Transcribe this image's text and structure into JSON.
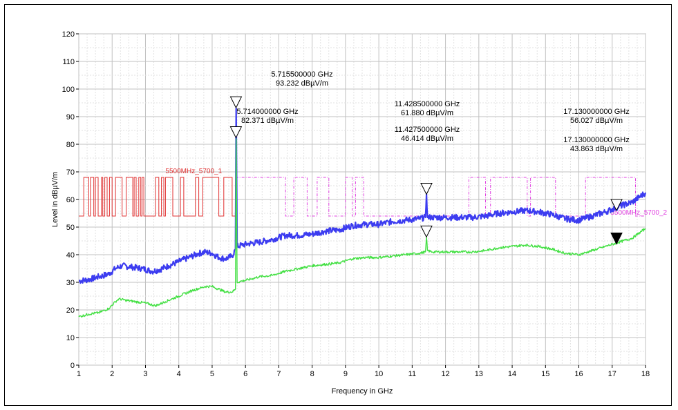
{
  "chart_data": {
    "type": "line",
    "xlabel": "Frequency in GHz",
    "ylabel": "Level in dBµV/m",
    "xlim": [
      1,
      18
    ],
    "ylim": [
      0,
      120
    ],
    "x_ticks": [
      "1",
      "2",
      "3",
      "4",
      "5",
      "6",
      "7",
      "8",
      "9",
      "10",
      "11",
      "12",
      "13",
      "14",
      "15",
      "16",
      "17",
      "18"
    ],
    "y_ticks": [
      "0",
      "10",
      "20",
      "30",
      "40",
      "50",
      "60",
      "70",
      "80",
      "90",
      "100",
      "110",
      "120"
    ],
    "grid": true,
    "colors": {
      "peak": "#3c3cf0",
      "average": "#44e044",
      "limit_1": "#e03030",
      "limit_2": "#e040e0",
      "marker": "#000000"
    },
    "series": [
      {
        "color": "#3c3cf0",
        "x": [
          1,
          1.3,
          1.6,
          1.9,
          2.1,
          2.3,
          2.6,
          2.9,
          3.2,
          3.4,
          3.7,
          4.0,
          4.3,
          4.6,
          4.8,
          5.0,
          5.2,
          5.4,
          5.6,
          5.7,
          5.72,
          5.75,
          5.9,
          6.1,
          6.4,
          6.8,
          7.2,
          7.6,
          8.0,
          8.4,
          8.8,
          9.2,
          9.6,
          10.0,
          10.4,
          10.8,
          11.2,
          11.4,
          11.43,
          11.46,
          11.6,
          12.0,
          12.4,
          12.8,
          13.2,
          13.6,
          14.0,
          14.4,
          14.8,
          15.2,
          15.6,
          16.0,
          16.4,
          16.8,
          17.2,
          17.6,
          18.0
        ],
        "y": [
          30.5,
          31,
          32,
          33,
          35,
          36,
          35.5,
          35,
          34,
          34.5,
          36,
          37.5,
          39,
          40.5,
          41,
          40.5,
          39,
          38.5,
          39.5,
          42,
          93,
          43,
          43.5,
          44,
          44.5,
          45.5,
          47,
          47,
          47.5,
          48.5,
          49,
          50.5,
          51,
          51,
          52,
          52.5,
          53,
          53.5,
          62,
          53.5,
          53.5,
          53.5,
          53.5,
          53.5,
          54,
          55,
          55.5,
          56,
          55.5,
          54.5,
          53,
          52.5,
          54,
          55.5,
          57.5,
          59,
          62.5
        ]
      },
      {
        "color": "#44e044",
        "x": [
          1,
          1.3,
          1.6,
          1.9,
          2.1,
          2.2,
          2.4,
          2.7,
          3.0,
          3.3,
          3.6,
          4.0,
          4.4,
          4.8,
          5.0,
          5.2,
          5.4,
          5.6,
          5.7,
          5.72,
          5.75,
          5.9,
          6.1,
          6.4,
          6.8,
          7.2,
          7.6,
          8.0,
          8.4,
          8.8,
          9.2,
          9.6,
          10.0,
          10.4,
          10.8,
          11.2,
          11.4,
          11.43,
          11.46,
          11.6,
          12.0,
          12.4,
          12.8,
          13.2,
          13.6,
          14.0,
          14.4,
          14.8,
          15.2,
          15.6,
          16.0,
          16.4,
          16.8,
          17.2,
          17.6,
          18.0
        ],
        "y": [
          17.5,
          18.5,
          19,
          20.5,
          23,
          24,
          23.5,
          23,
          22.5,
          21.5,
          23,
          25,
          27,
          28.5,
          28.5,
          27.5,
          26.5,
          26.5,
          27.5,
          82,
          30,
          30.5,
          31,
          32,
          32.5,
          34,
          35,
          36,
          36.5,
          37,
          38.5,
          39,
          39,
          39.5,
          40,
          40.5,
          41,
          46.4,
          41.5,
          41,
          41,
          41,
          41,
          41.5,
          42.5,
          43,
          43.5,
          43,
          42,
          40.5,
          40,
          41.5,
          43,
          44.5,
          46,
          49.5
        ]
      }
    ],
    "limit_lines": [
      {
        "name": "5500MHz_5700_1",
        "color": "#e03030",
        "x": [
          1,
          1.15,
          1.15,
          1.3,
          1.3,
          1.35,
          1.35,
          1.45,
          1.45,
          1.5,
          1.5,
          1.58,
          1.58,
          1.68,
          1.68,
          1.72,
          1.72,
          1.78,
          1.78,
          1.85,
          1.85,
          1.92,
          1.92,
          2.0,
          2.0,
          2.1,
          2.1,
          2.3,
          2.3,
          2.42,
          2.42,
          2.62,
          2.62,
          2.66,
          2.66,
          2.72,
          2.72,
          2.8,
          2.8,
          2.86,
          2.86,
          2.9,
          2.9,
          2.95,
          2.95,
          3.3,
          3.3,
          3.4,
          3.4,
          3.48,
          3.48,
          3.55,
          3.55,
          3.6,
          3.6,
          3.82,
          3.82,
          4.05,
          4.05,
          4.15,
          4.15,
          4.5,
          4.5,
          4.6,
          4.6,
          4.72,
          4.72,
          5.2,
          5.2,
          5.35,
          5.35,
          5.6,
          5.6,
          5.7
        ],
        "y": [
          54,
          54,
          68,
          68,
          54,
          54,
          68,
          68,
          54,
          54,
          68,
          68,
          54,
          54,
          68,
          68,
          54,
          54,
          68,
          68,
          54,
          54,
          68,
          68,
          54,
          54,
          68,
          68,
          54,
          54,
          68,
          68,
          54,
          54,
          68,
          68,
          54,
          54,
          68,
          68,
          54,
          54,
          68,
          68,
          54,
          54,
          68,
          68,
          54,
          54,
          68,
          68,
          54,
          54,
          68,
          68,
          54,
          54,
          68,
          68,
          54,
          54,
          68,
          68,
          54,
          54,
          68,
          68,
          54,
          54,
          68,
          68,
          54,
          54
        ]
      },
      {
        "name": "5500MHz_5700_2",
        "color": "#e040e0",
        "x": [
          5.7,
          7.2,
          7.2,
          7.45,
          7.45,
          7.85,
          7.85,
          8.15,
          8.15,
          8.5,
          8.5,
          9.0,
          9.0,
          9.2,
          9.2,
          9.3,
          9.3,
          9.55,
          9.55,
          10.6,
          10.6,
          12.7,
          12.7,
          13.2,
          13.2,
          13.35,
          13.35,
          14.45,
          14.45,
          14.55,
          14.55,
          15.3,
          15.3,
          16.2,
          16.2,
          17.7,
          17.7,
          18.0
        ],
        "y": [
          68,
          68,
          54,
          54,
          68,
          68,
          54,
          54,
          68,
          68,
          54,
          54,
          68,
          68,
          54,
          54,
          68,
          68,
          54,
          54,
          54,
          54,
          68,
          68,
          54,
          54,
          68,
          68,
          54,
          54,
          68,
          68,
          54,
          54,
          68,
          68,
          54,
          54
        ]
      }
    ],
    "markers": [
      {
        "x": 5.7155,
        "y": 93.232,
        "filled": false,
        "freq": "5.715500000 GHz",
        "level": "93.232 dBµV/m"
      },
      {
        "x": 5.714,
        "y": 82.371,
        "filled": false,
        "freq": "5.714000000 GHz",
        "level": "82.371 dBµV/m"
      },
      {
        "x": 11.4285,
        "y": 61.88,
        "filled": false,
        "freq": "11.428500000 GHz",
        "level": "61.880 dBµV/m"
      },
      {
        "x": 11.4275,
        "y": 46.414,
        "filled": false,
        "freq": "11.427500000 GHz",
        "level": "46.414 dBµV/m"
      },
      {
        "x": 17.13,
        "y": 56.027,
        "filled": false,
        "freq": "17.130000000 GHz",
        "level": "56.027 dBµV/m"
      },
      {
        "x": 17.13,
        "y": 43.863,
        "filled": true,
        "freq": "17.130000000 GHz",
        "level": "43.863 dBµV/m"
      }
    ]
  }
}
